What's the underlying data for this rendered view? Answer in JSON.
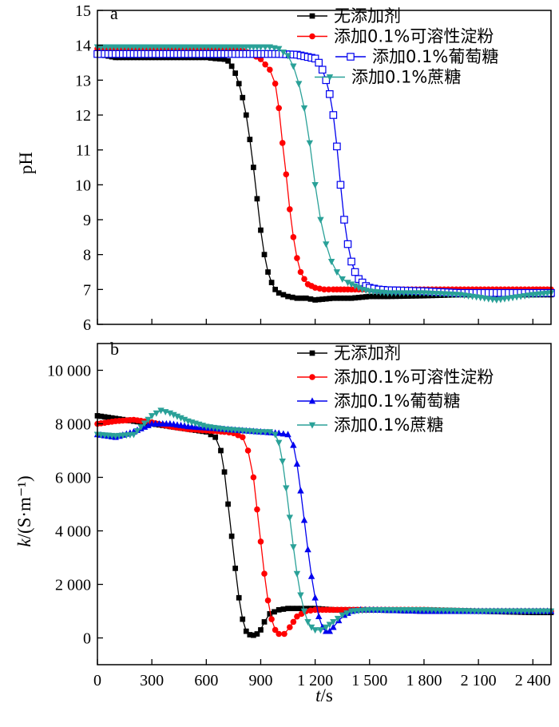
{
  "chart_data": [
    {
      "type": "line",
      "panel_label": "a",
      "ylabel": "pH",
      "xlabel": "",
      "xlim": [
        0,
        2500
      ],
      "ylim": [
        6,
        15
      ],
      "yticks": [
        "6",
        "7",
        "8",
        "9",
        "10",
        "11",
        "12",
        "13",
        "14",
        "15"
      ],
      "legend_position": "top-right",
      "series": [
        {
          "name": "无添加剂",
          "color": "#000000",
          "marker": "square-filled",
          "x": [
            0,
            100,
            200,
            300,
            400,
            500,
            600,
            650,
            700,
            720,
            740,
            760,
            780,
            800,
            820,
            840,
            860,
            880,
            900,
            920,
            940,
            960,
            980,
            1000,
            1050,
            1100,
            1150,
            1200,
            1300,
            1400,
            1500,
            1600,
            1800,
            2000,
            2200,
            2400,
            2500
          ],
          "y": [
            13.75,
            13.65,
            13.65,
            13.65,
            13.65,
            13.65,
            13.65,
            13.62,
            13.6,
            13.55,
            13.4,
            13.2,
            12.9,
            12.5,
            12.0,
            11.3,
            10.5,
            9.6,
            8.7,
            8.0,
            7.5,
            7.2,
            7.0,
            6.9,
            6.8,
            6.75,
            6.75,
            6.7,
            6.75,
            6.75,
            6.8,
            6.8,
            6.82,
            6.85,
            6.85,
            6.85,
            6.85
          ]
        },
        {
          "name": "添加0.1%可溶性淀粉",
          "color": "#ff0000",
          "marker": "diamond-filled",
          "x": [
            0,
            100,
            200,
            300,
            400,
            500,
            600,
            700,
            800,
            850,
            900,
            950,
            980,
            1000,
            1020,
            1040,
            1060,
            1080,
            1100,
            1120,
            1140,
            1160,
            1200,
            1250,
            1300,
            1400,
            1500,
            1600,
            1800,
            2000,
            2200,
            2400,
            2500
          ],
          "y": [
            13.9,
            13.9,
            13.9,
            13.9,
            13.9,
            13.9,
            13.9,
            13.9,
            13.85,
            13.75,
            13.6,
            13.3,
            12.9,
            12.2,
            11.2,
            10.3,
            9.3,
            8.5,
            7.9,
            7.5,
            7.3,
            7.15,
            7.05,
            7.0,
            7.0,
            7.0,
            7.0,
            7.0,
            7.0,
            7.0,
            7.0,
            7.0,
            7.0
          ]
        },
        {
          "name": "添加0.1%葡萄糖",
          "color": "#0000ee",
          "marker": "square-open",
          "x": [
            0,
            100,
            200,
            300,
            400,
            500,
            600,
            700,
            800,
            900,
            1000,
            1100,
            1200,
            1220,
            1240,
            1260,
            1280,
            1300,
            1320,
            1340,
            1360,
            1380,
            1400,
            1420,
            1440,
            1460,
            1480,
            1500,
            1550,
            1600,
            1800,
            2000,
            2200,
            2400,
            2500
          ],
          "y": [
            13.75,
            13.75,
            13.75,
            13.75,
            13.75,
            13.75,
            13.75,
            13.75,
            13.75,
            13.75,
            13.75,
            13.73,
            13.62,
            13.5,
            13.3,
            13.0,
            12.6,
            12.0,
            11.1,
            10.0,
            9.0,
            8.3,
            7.8,
            7.5,
            7.3,
            7.2,
            7.1,
            7.05,
            7.0,
            6.98,
            6.95,
            6.9,
            6.9,
            6.9,
            6.9
          ]
        },
        {
          "name": "添加0.1%蔗糖",
          "color": "#2aa198",
          "marker": "triangle-down-filled",
          "x": [
            0,
            100,
            200,
            300,
            400,
            500,
            600,
            700,
            800,
            900,
            950,
            1000,
            1050,
            1080,
            1110,
            1140,
            1170,
            1200,
            1230,
            1260,
            1290,
            1320,
            1350,
            1380,
            1420,
            1460,
            1500,
            1600,
            1800,
            2000,
            2200,
            2400,
            2500
          ],
          "y": [
            13.95,
            13.95,
            13.95,
            13.95,
            13.95,
            13.95,
            13.95,
            13.95,
            13.95,
            13.95,
            13.95,
            13.9,
            13.7,
            13.4,
            12.9,
            12.2,
            11.2,
            10.0,
            9.0,
            8.3,
            7.8,
            7.5,
            7.3,
            7.2,
            7.1,
            7.0,
            6.95,
            6.9,
            6.9,
            6.85,
            6.7,
            6.85,
            6.9
          ]
        }
      ]
    },
    {
      "type": "line",
      "panel_label": "b",
      "ylabel": "k/(S·m⁻¹)",
      "xlabel": "t/s",
      "xlim": [
        0,
        2500
      ],
      "ylim": [
        -1000,
        11000
      ],
      "xticks": [
        0,
        300,
        600,
        900,
        1200,
        1500,
        1800,
        2100,
        2400
      ],
      "xtick_labels": [
        "0",
        "300",
        "600",
        "900",
        "1 200",
        "1 500",
        "1 800",
        "2 100",
        "2 400"
      ],
      "yticks": [
        0,
        2000,
        4000,
        6000,
        8000,
        10000
      ],
      "ytick_labels": [
        "0",
        "2 000",
        "4 000",
        "6 000",
        "8 000",
        "10 000"
      ],
      "legend_position": "top-right",
      "series": [
        {
          "name": "无添加剂",
          "color": "#000000",
          "marker": "square-filled",
          "x": [
            0,
            100,
            200,
            300,
            400,
            500,
            600,
            650,
            680,
            700,
            720,
            740,
            760,
            780,
            800,
            820,
            840,
            860,
            880,
            900,
            920,
            950,
            1000,
            1050,
            1100,
            1150,
            1200,
            1300,
            1500,
            1800,
            2100,
            2400,
            2500
          ],
          "y": [
            8300,
            8200,
            8100,
            8000,
            7900,
            7800,
            7700,
            7500,
            7000,
            6200,
            5000,
            3800,
            2600,
            1500,
            700,
            250,
            120,
            100,
            150,
            300,
            600,
            900,
            1050,
            1100,
            1100,
            1100,
            1100,
            1050,
            1050,
            1000,
            1000,
            950,
            950
          ]
        },
        {
          "name": "添加0.1%可溶性淀粉",
          "color": "#ff0000",
          "marker": "diamond-filled",
          "x": [
            0,
            100,
            200,
            300,
            400,
            500,
            600,
            700,
            750,
            800,
            830,
            860,
            880,
            900,
            920,
            940,
            960,
            980,
            1000,
            1030,
            1060,
            1100,
            1150,
            1200,
            1300,
            1500,
            1800,
            2100,
            2400,
            2500
          ],
          "y": [
            8000,
            8100,
            8150,
            8050,
            7900,
            7800,
            7750,
            7700,
            7650,
            7500,
            7000,
            6000,
            4800,
            3600,
            2400,
            1400,
            700,
            300,
            150,
            150,
            400,
            800,
            1000,
            1050,
            1050,
            1050,
            1050,
            1000,
            1000,
            1000
          ]
        },
        {
          "name": "添加0.1%葡萄糖",
          "color": "#0000ee",
          "marker": "triangle-up-filled",
          "x": [
            0,
            100,
            200,
            300,
            400,
            500,
            600,
            700,
            800,
            900,
            1000,
            1050,
            1080,
            1100,
            1120,
            1140,
            1160,
            1180,
            1200,
            1220,
            1240,
            1260,
            1280,
            1300,
            1330,
            1360,
            1400,
            1450,
            1500,
            1800,
            2100,
            2400,
            2500
          ],
          "y": [
            7600,
            7500,
            7700,
            8000,
            8000,
            7900,
            7850,
            7800,
            7750,
            7700,
            7650,
            7600,
            7200,
            6500,
            5500,
            4400,
            3300,
            2300,
            1500,
            800,
            400,
            250,
            250,
            400,
            650,
            850,
            1000,
            1050,
            1050,
            1000,
            1000,
            1000,
            1000
          ]
        },
        {
          "name": "添加0.1%蔗糖",
          "color": "#2aa198",
          "marker": "triangle-down-filled",
          "x": [
            0,
            100,
            200,
            300,
            350,
            400,
            500,
            600,
            700,
            800,
            900,
            950,
            980,
            1000,
            1020,
            1040,
            1060,
            1080,
            1100,
            1120,
            1140,
            1160,
            1180,
            1200,
            1230,
            1260,
            1300,
            1350,
            1400,
            1500,
            1800,
            2100,
            2400,
            2500
          ],
          "y": [
            7600,
            7550,
            7600,
            8300,
            8500,
            8400,
            8100,
            7900,
            7800,
            7750,
            7700,
            7700,
            7600,
            7300,
            6600,
            5600,
            4500,
            3400,
            2400,
            1600,
            1000,
            600,
            400,
            300,
            300,
            400,
            600,
            850,
            1000,
            1050,
            1050,
            1000,
            1000,
            1000
          ]
        }
      ]
    }
  ]
}
